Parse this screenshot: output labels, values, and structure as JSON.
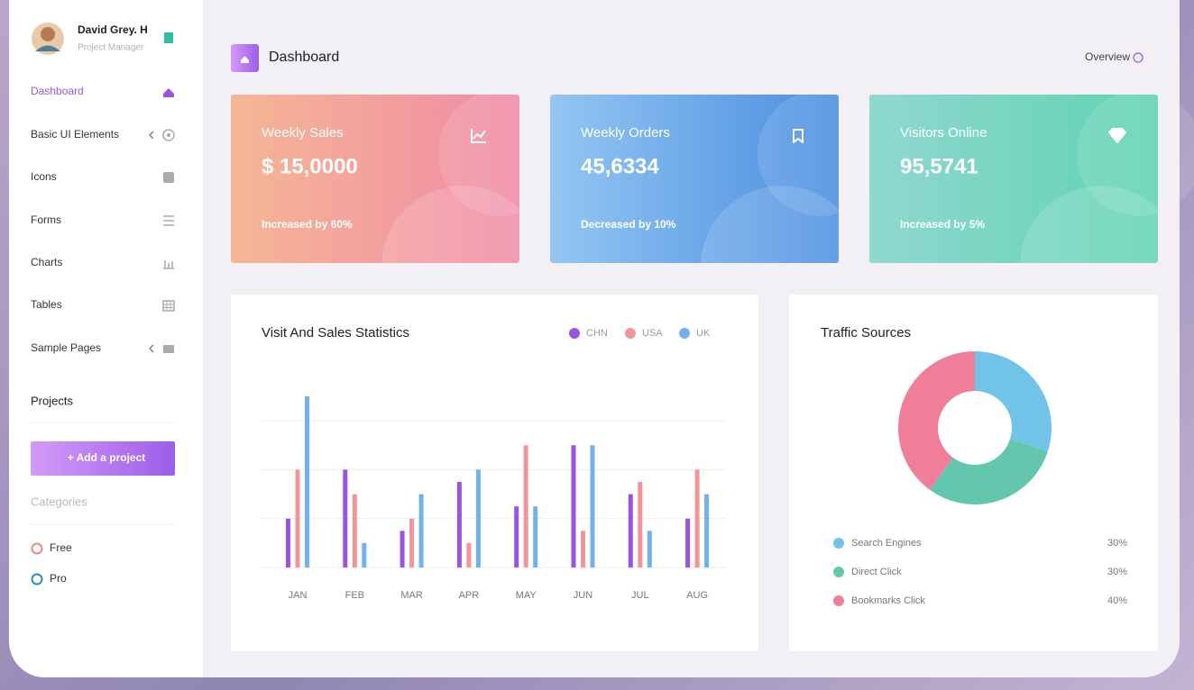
{
  "sidebar": {
    "user": {
      "name": "David Grey. H",
      "role": "Project Manager"
    },
    "menu": [
      "Dashboard",
      "Basic UI Elements",
      "Icons",
      "Forms",
      "Charts",
      "Tables",
      "Sample Pages"
    ],
    "projects_heading": "Projects",
    "add_project": "+ Add a project",
    "categories_heading": "Categories",
    "categories": [
      "Free",
      "Pro"
    ]
  },
  "header": {
    "title": "Dashboard",
    "overview": "Overview"
  },
  "cards": [
    {
      "title": "Weekly Sales",
      "value": "$ 15,0000",
      "note": "Increased by 60%"
    },
    {
      "title": "Weekly Orders",
      "value": "45,6334",
      "note": "Decreased by 10%"
    },
    {
      "title": "Visitors Online",
      "value": "95,5741",
      "note": "Increased by 5%"
    }
  ],
  "visit_chart": {
    "type": "bar",
    "title": "Visit And Sales Statistics",
    "categories": [
      "JAN",
      "FEB",
      "MAR",
      "APR",
      "MAY",
      "JUN",
      "JUL",
      "AUG"
    ],
    "series": [
      {
        "name": "CHN",
        "color": "#9a55e0",
        "values": [
          10,
          20,
          7.5,
          17.5,
          12.5,
          25,
          15,
          10
        ]
      },
      {
        "name": "USA",
        "color": "#f0969a",
        "values": [
          20,
          15,
          10,
          5,
          25,
          7.5,
          17.5,
          20
        ]
      },
      {
        "name": "UK",
        "color": "#72b2ea",
        "values": [
          35,
          5,
          15,
          20,
          12.5,
          25,
          7.5,
          15
        ]
      }
    ],
    "ylim": [
      0,
      35
    ],
    "yticks": [
      0,
      10,
      20,
      30
    ],
    "grid": true
  },
  "traffic_chart": {
    "type": "pie",
    "title": "Traffic Sources",
    "categories": [
      "Search Engines",
      "Direct Click",
      "Bookmarks Click"
    ],
    "values": [
      30,
      30,
      40
    ],
    "value_labels": [
      "30%",
      "30%",
      "40%"
    ],
    "colors": [
      "#72c3e8",
      "#62c7ad",
      "#ef7e98"
    ],
    "donut": true
  }
}
